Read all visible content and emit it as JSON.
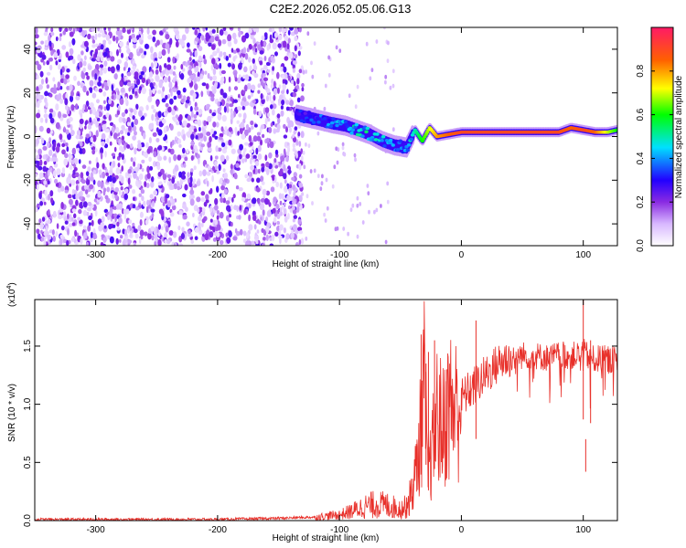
{
  "title": "C2E2.2026.052.05.06.G13",
  "chart_data": [
    {
      "type": "heatmap",
      "title": "C2E2.2026.052.05.06.G13",
      "xlabel": "Height of straight line (km)",
      "ylabel": "Frequency (Hz)",
      "xlim": [
        -350,
        128
      ],
      "ylim": [
        -50,
        50
      ],
      "x_ticks": [
        "-300",
        "-200",
        "-100",
        "0",
        "100"
      ],
      "x_tick_values": [
        -300,
        -200,
        -100,
        0,
        100
      ],
      "y_ticks": [
        "-40",
        "-20",
        "0",
        "20",
        "40"
      ],
      "y_tick_values": [
        -40,
        -20,
        0,
        20,
        40
      ],
      "colorbar": {
        "label": "Normalized spectral amplitude",
        "range": [
          0,
          1
        ],
        "ticks": [
          "0.0",
          "0.2",
          "0.4",
          "0.6",
          "0.8"
        ],
        "tick_values": [
          0.0,
          0.2,
          0.4,
          0.6,
          0.8
        ],
        "colormap": [
          "#f2e6ff",
          "#8a2be2",
          "#2200ff",
          "#00ffff",
          "#00ff00",
          "#ffff00",
          "#ff8000",
          "#ff0000",
          "#ff1a66"
        ]
      },
      "noise_region": {
        "x_range": [
          -350,
          -130
        ],
        "y_range": [
          -50,
          50
        ],
        "level": 0.2
      },
      "sparse_region": {
        "x_range": [
          -130,
          -55
        ],
        "y_range": [
          -50,
          50
        ],
        "level": 0.1
      },
      "signal_track": {
        "x": [
          -135,
          -120,
          -105,
          -95,
          -85,
          -75,
          -65,
          -55,
          -45,
          -38,
          -32,
          -26,
          -20,
          -10,
          0,
          20,
          40,
          60,
          80,
          90,
          100,
          110,
          120,
          128
        ],
        "y": [
          10,
          8,
          6,
          5,
          3,
          1,
          -2,
          -4,
          -5,
          3,
          -2,
          4,
          0,
          1,
          2,
          2,
          2,
          2,
          2,
          4,
          3,
          2,
          2,
          3
        ],
        "amplitude": [
          0.3,
          0.35,
          0.4,
          0.45,
          0.5,
          0.5,
          0.45,
          0.4,
          0.4,
          0.5,
          0.6,
          0.7,
          0.8,
          0.85,
          0.9,
          0.9,
          0.9,
          0.9,
          0.9,
          0.85,
          0.9,
          0.85,
          0.7,
          0.6
        ]
      }
    },
    {
      "type": "line",
      "xlabel": "Height of straight line (km)",
      "ylabel": "SNR (10 * v/v)",
      "y_scale_label": "(x10",
      "y_scale_exponent": "4",
      "xlim": [
        -350,
        128
      ],
      "ylim": [
        0,
        1.9
      ],
      "x_ticks": [
        "-300",
        "-200",
        "-100",
        "0",
        "100"
      ],
      "x_tick_values": [
        -300,
        -200,
        -100,
        0,
        100
      ],
      "y_ticks": [
        "0.0",
        "0.5",
        "1.0",
        "1.5"
      ],
      "y_tick_values": [
        0.0,
        0.5,
        1.0,
        1.5
      ],
      "series": [
        {
          "name": "SNR",
          "color": "#e8302a",
          "x": [
            -350,
            -300,
            -250,
            -200,
            -150,
            -120,
            -100,
            -90,
            -80,
            -70,
            -60,
            -50,
            -45,
            -40,
            -35,
            -30,
            -28,
            -25,
            -20,
            -15,
            -10,
            -5,
            0,
            5,
            10,
            15,
            20,
            25,
            30,
            35,
            40,
            50,
            60,
            70,
            80,
            90,
            95,
            100,
            105,
            110,
            115,
            120,
            128
          ],
          "y": [
            0.01,
            0.01,
            0.01,
            0.01,
            0.02,
            0.03,
            0.05,
            0.08,
            0.12,
            0.14,
            0.13,
            0.1,
            0.12,
            0.25,
            0.6,
            1.2,
            0.4,
            0.5,
            0.9,
            0.8,
            1.0,
            0.95,
            1.05,
            1.1,
            1.15,
            1.2,
            1.25,
            1.3,
            1.35,
            1.38,
            1.4,
            1.42,
            1.42,
            1.4,
            1.42,
            1.42,
            1.42,
            1.45,
            1.4,
            1.38,
            1.4,
            1.38,
            1.38
          ],
          "spikes": [
            {
              "x": -45,
              "y": 0.2
            },
            {
              "x": -40,
              "y": 0.36
            },
            {
              "x": -33,
              "y": 1.6
            },
            {
              "x": -29,
              "y": 1.35
            },
            {
              "x": -27,
              "y": 1.45
            },
            {
              "x": -22,
              "y": 1.55
            },
            {
              "x": -12,
              "y": 1.3
            },
            {
              "x": 12,
              "y": 1.72
            },
            {
              "x": 100,
              "y": 1.9
            },
            {
              "x": 102,
              "y": 0.7
            },
            {
              "x": 106,
              "y": 1.55
            }
          ]
        }
      ]
    }
  ]
}
